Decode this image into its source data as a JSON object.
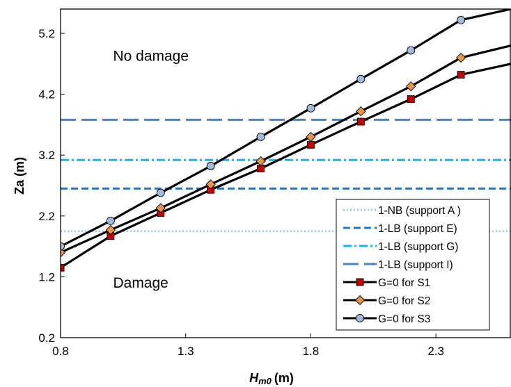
{
  "chart_data": {
    "type": "line",
    "xlabel": "Hm0 (m)",
    "xlabel_main": "H",
    "xlabel_sub": "m0",
    "xlabel_unit": "(m)",
    "ylabel": "Za (m)",
    "xlim": [
      0.8,
      2.6
    ],
    "ylim": [
      0.2,
      5.6
    ],
    "x_ticks": [
      "0.8",
      "1.3",
      "1.8",
      "2.3"
    ],
    "y_ticks": [
      "0.2",
      "1.2",
      "2.2",
      "3.2",
      "4.2",
      "5.2"
    ],
    "grid": false,
    "legend_position": "bottom-right",
    "annotations": [
      {
        "text": "No damage",
        "x": 1.01,
        "y": 4.75
      },
      {
        "text": "Damage",
        "x": 1.01,
        "y": 1.02
      }
    ],
    "reference_lines": [
      {
        "name": "1-NB (support A )",
        "y": 1.95,
        "style": "dotted",
        "color": "#9dc3e6"
      },
      {
        "name": "1-LB (support E)",
        "y": 2.65,
        "style": "dashed",
        "color": "#1f77c4"
      },
      {
        "name": "1-LB (support G)",
        "y": 3.12,
        "style": "dashdot",
        "color": "#18b4e8"
      },
      {
        "name": "1-LB (support I)",
        "y": 3.78,
        "style": "longdash",
        "color": "#4f81bd"
      }
    ],
    "series": [
      {
        "name": "G=0 for S1",
        "marker": "square",
        "color": "#c00000",
        "x": [
          0.8,
          1.0,
          1.2,
          1.4,
          1.6,
          1.8,
          2.0,
          2.2,
          2.4,
          2.6
        ],
        "y": [
          1.35,
          1.87,
          2.25,
          2.63,
          2.98,
          3.37,
          3.75,
          4.12,
          4.52,
          4.7
        ]
      },
      {
        "name": "G=0 for S2",
        "marker": "diamond",
        "color": "#e8954a",
        "x": [
          0.8,
          1.0,
          1.2,
          1.4,
          1.6,
          1.8,
          2.0,
          2.2,
          2.4,
          2.6
        ],
        "y": [
          1.6,
          1.97,
          2.33,
          2.72,
          3.1,
          3.5,
          3.92,
          4.33,
          4.8,
          5.0
        ]
      },
      {
        "name": "G=0 for S3",
        "marker": "circle",
        "color": "#a6b9db",
        "x": [
          0.8,
          1.0,
          1.2,
          1.4,
          1.6,
          1.8,
          2.0,
          2.2,
          2.4,
          2.6
        ],
        "y": [
          1.7,
          2.12,
          2.58,
          3.02,
          3.5,
          3.97,
          4.45,
          4.92,
          5.42,
          5.6
        ]
      }
    ]
  }
}
